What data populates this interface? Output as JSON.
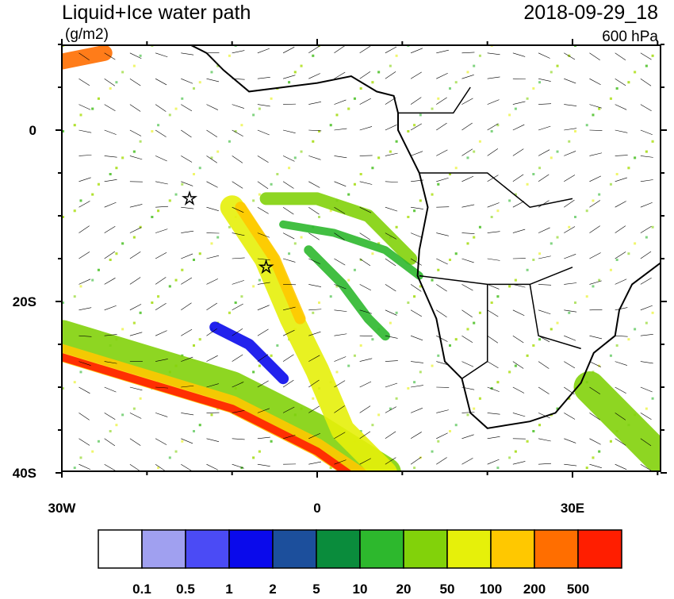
{
  "title": "Liquid+Ice water path",
  "units": "(g/m2)",
  "valid_time": "2018-09-29_18",
  "level": "600 hPa",
  "map": {
    "lat_labels": [
      "0",
      "20S",
      "40S"
    ],
    "lon_labels": [
      "30W",
      "0",
      "30E"
    ]
  },
  "colorbar": {
    "colors": [
      "#ffffff",
      "#a0a0f0",
      "#4b4bf5",
      "#0a0aeb",
      "#1c4f9c",
      "#0a8c3c",
      "#2db82d",
      "#82d20a",
      "#e6f00a",
      "#ffc800",
      "#ff6e00",
      "#ff1e00"
    ],
    "labels": [
      "0.1",
      "0.5",
      "1",
      "2",
      "5",
      "10",
      "20",
      "50",
      "100",
      "200",
      "500"
    ]
  }
}
